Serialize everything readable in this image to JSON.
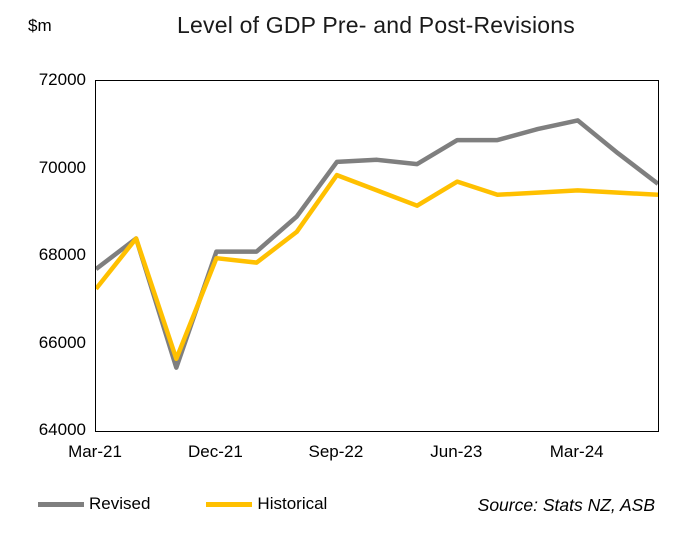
{
  "chart": {
    "title": "Level of GDP Pre- and Post-Revisions",
    "y_unit": "$m",
    "source": "Source: Stats NZ, ASB",
    "y_ticks": [
      "72000",
      "70000",
      "68000",
      "66000",
      "64000"
    ],
    "x_ticks": [
      "Mar-21",
      "Dec-21",
      "Sep-22",
      "Jun-23",
      "Mar-24"
    ]
  },
  "chart_data": {
    "type": "line",
    "title": "Level of GDP Pre- and Post-Revisions",
    "xlabel": "",
    "ylabel": "$m",
    "x": [
      "Mar-21",
      "Jun-21",
      "Sep-21",
      "Dec-21",
      "Mar-22",
      "Jun-22",
      "Sep-22",
      "Dec-22",
      "Mar-23",
      "Jun-23",
      "Sep-23",
      "Dec-23",
      "Mar-24",
      "Jun-24",
      "Sep-24"
    ],
    "series": [
      {
        "name": "Revised",
        "color": "#7F7F7F",
        "values": [
          67700,
          68400,
          65450,
          68100,
          68100,
          68900,
          70150,
          70200,
          70100,
          70650,
          70650,
          70900,
          71100,
          70350,
          69650
        ]
      },
      {
        "name": "Historical",
        "color": "#FFC000",
        "values": [
          67250,
          68400,
          65650,
          67950,
          67850,
          68550,
          69850,
          69500,
          69150,
          69700,
          69400,
          69450,
          69500,
          69450,
          69400
        ]
      }
    ],
    "ylim": [
      64000,
      72000
    ],
    "y_tick_step": 2000,
    "x_tick_labels": [
      "Mar-21",
      "Dec-21",
      "Sep-22",
      "Jun-23",
      "Mar-24"
    ],
    "grid": false,
    "legend_position": "bottom",
    "source": "Source: Stats NZ, ASB"
  }
}
